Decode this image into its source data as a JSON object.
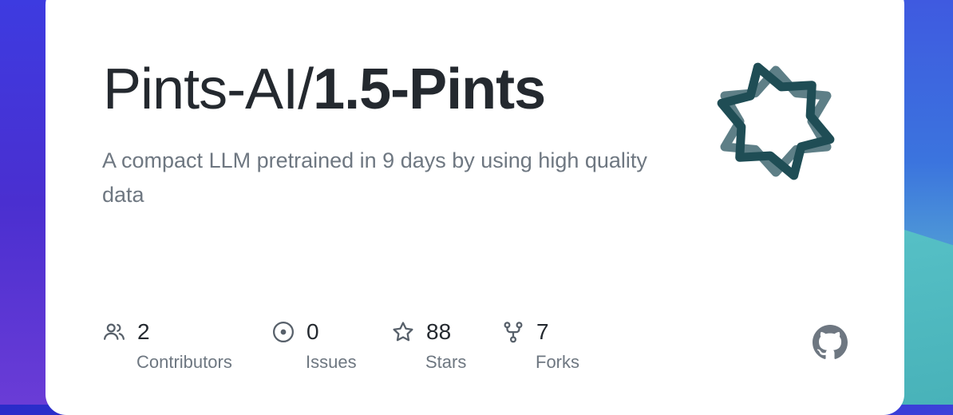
{
  "repo": {
    "owner": "Pints-AI/",
    "name": "1.5-Pints",
    "description": "A compact LLM pretrained in 9 days by using high quality data"
  },
  "stats": [
    {
      "icon": "contributors-icon",
      "count": "2",
      "label": "Contributors"
    },
    {
      "icon": "issues-icon",
      "count": "0",
      "label": "Issues"
    },
    {
      "icon": "star-icon",
      "count": "88",
      "label": "Stars"
    },
    {
      "icon": "fork-icon",
      "count": "7",
      "label": "Forks"
    }
  ],
  "logo": {
    "icon": "eight-point-star-logo",
    "colors": [
      "#5e7f87",
      "#1f4d55"
    ]
  },
  "brand": {
    "icon": "github-icon",
    "color": "#6e7781"
  }
}
